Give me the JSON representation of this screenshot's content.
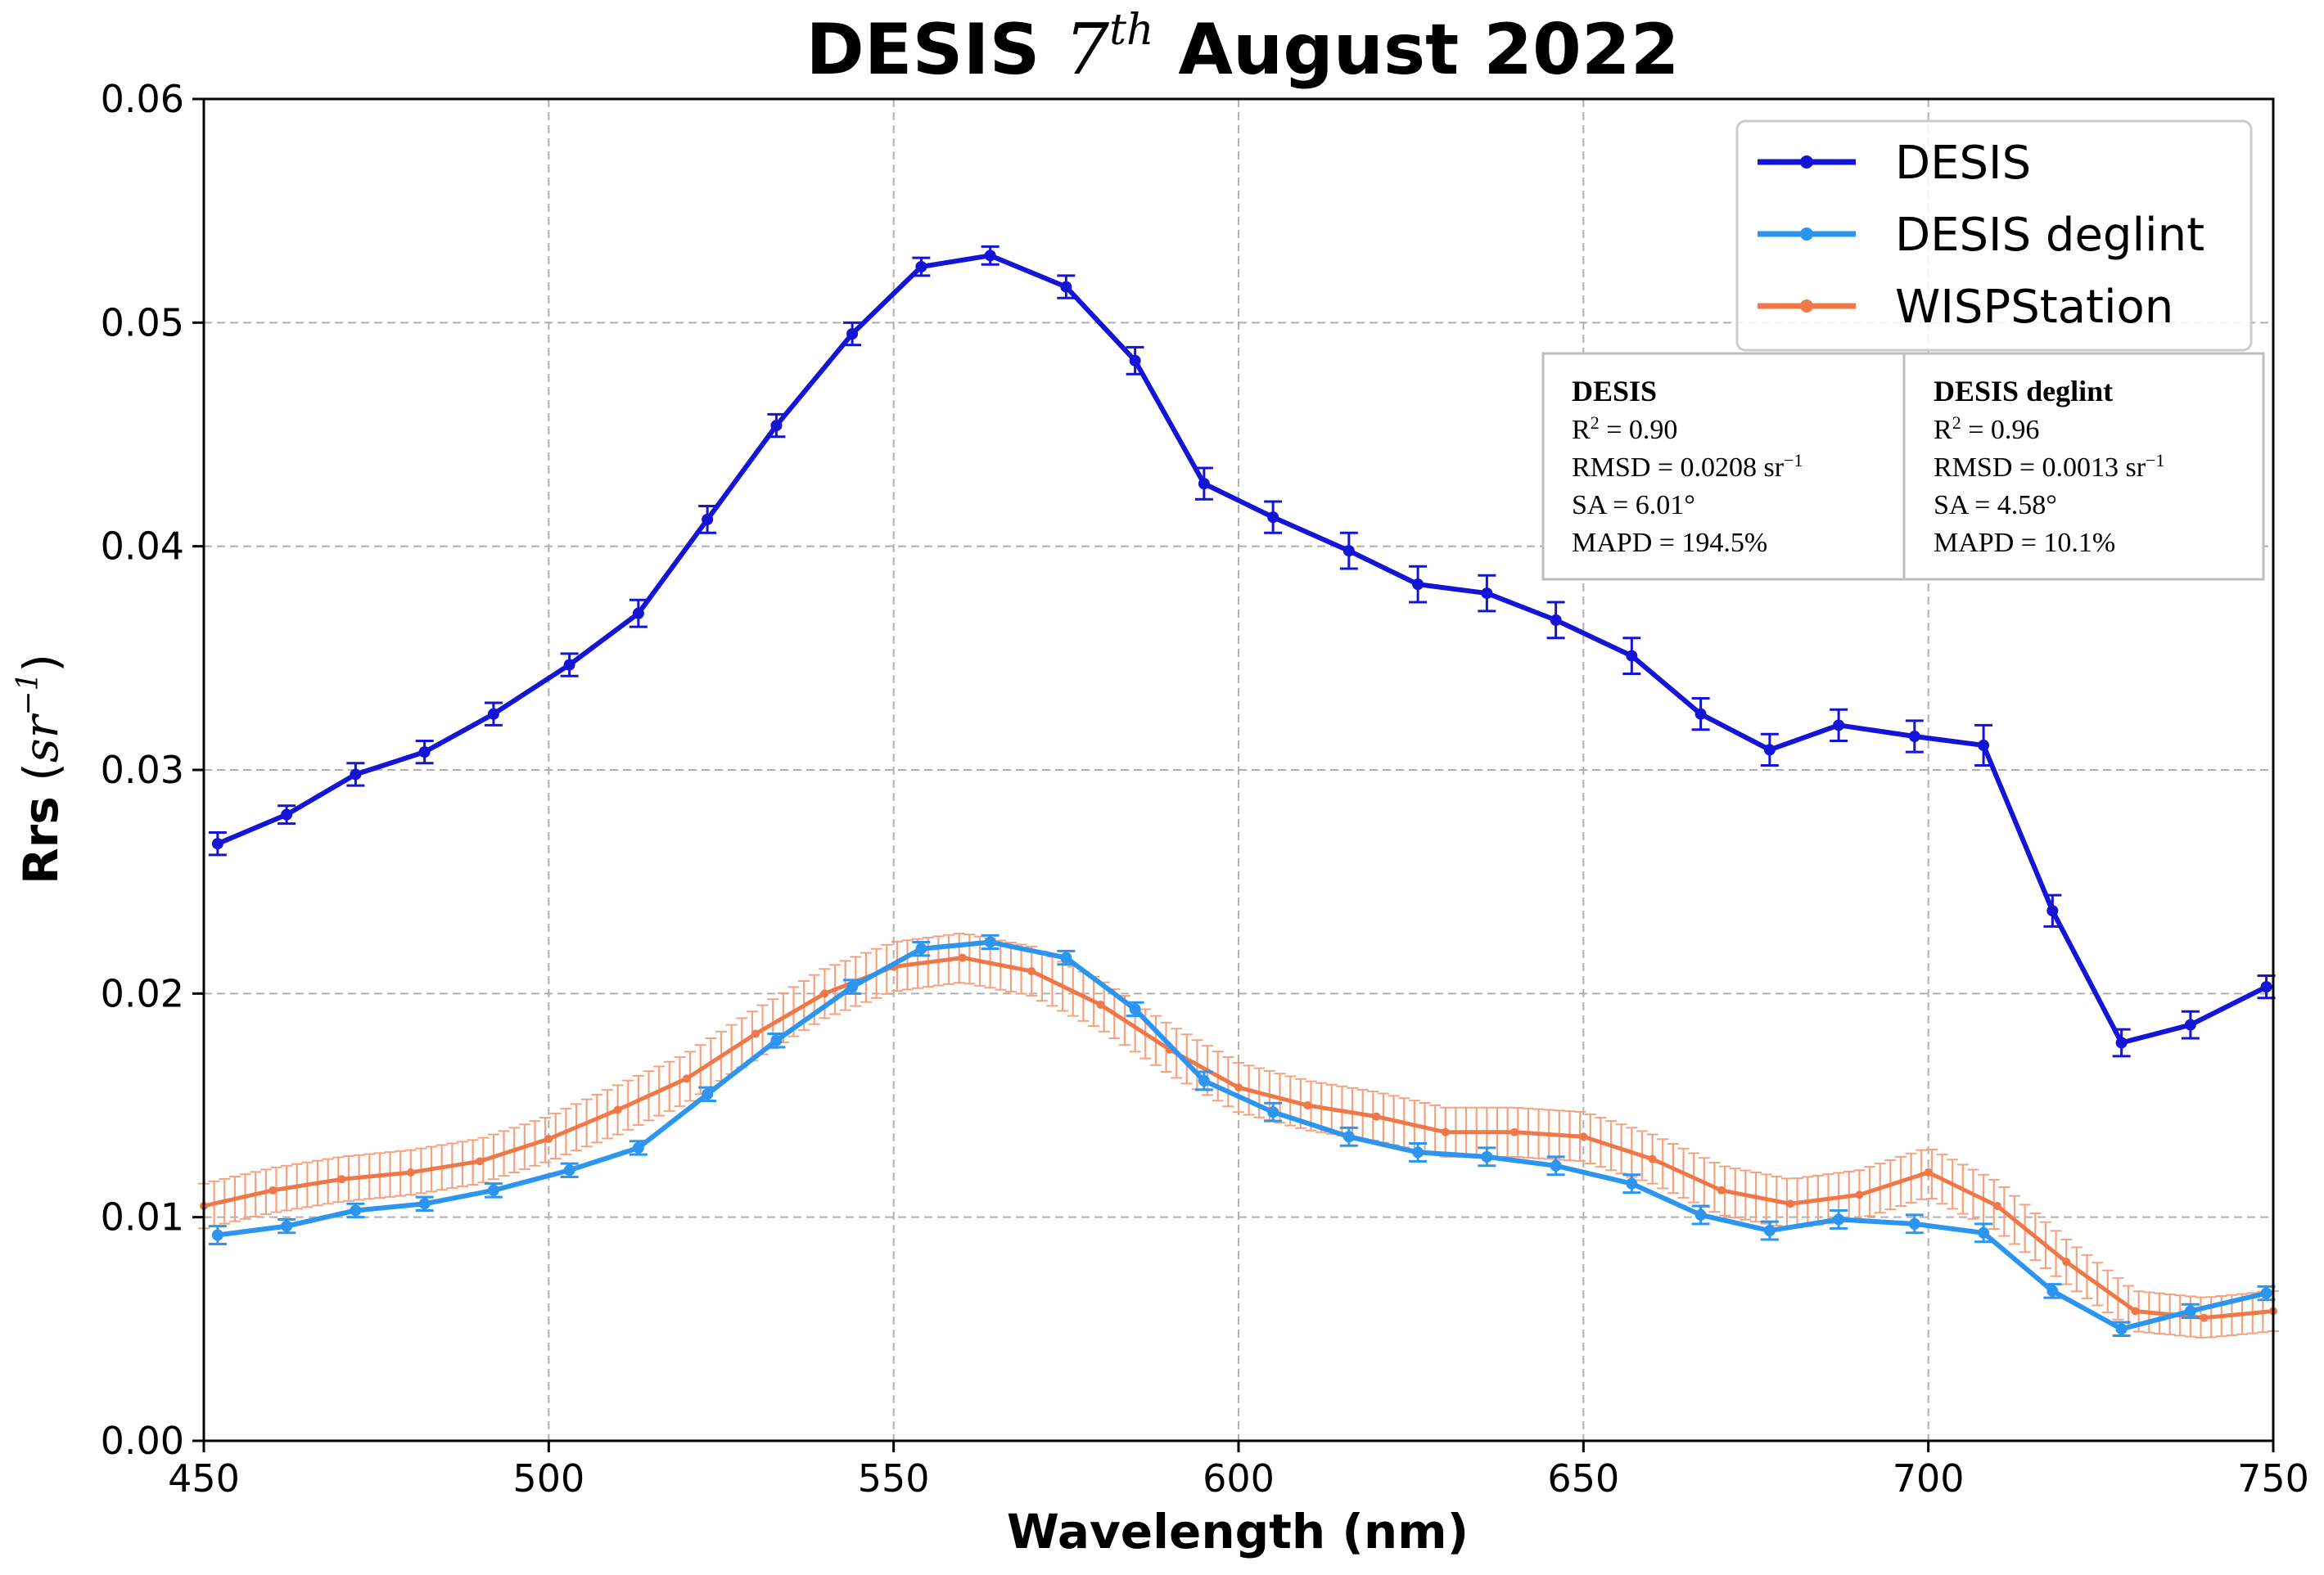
{
  "colors": {
    "desis": "#1414d6",
    "desis_deglint": "#2c95f0",
    "wisp": "#f07848",
    "wisp_errorbar": "#f5a27e",
    "grid": "#b0b0b0"
  },
  "stats": {
    "desis": {
      "title": "DESIS",
      "r2_base": "R",
      "r2_sup": "2",
      "r2_val": " = 0.90",
      "rmsd_text": "RMSD = 0.0208 sr",
      "rmsd_sup": "−1",
      "sa": "SA = 6.01°",
      "mapd": "MAPD = 194.5%"
    },
    "deglint": {
      "title": "DESIS deglint",
      "r2_base": "R",
      "r2_sup": "2",
      "r2_val": " = 0.96",
      "rmsd_text": "RMSD = 0.0013 sr",
      "rmsd_sup": "−1",
      "sa": "SA = 4.58°",
      "mapd": "MAPD = 10.1%"
    }
  },
  "chart_data": {
    "type": "line",
    "title": "DESIS 7th August 2022",
    "title_parts": {
      "pre": "DESIS ",
      "num": "7",
      "sup": "th",
      "post": " August 2022"
    },
    "xlabel": "Wavelength (nm)",
    "ylabel": "Rrs",
    "ylabel_unit": "sr",
    "ylabel_unit_exp": "−1",
    "xlim": [
      450,
      750
    ],
    "ylim": [
      0.0,
      0.06
    ],
    "xticks": [
      450,
      500,
      550,
      600,
      650,
      700,
      750
    ],
    "yticks": [
      0.0,
      0.01,
      0.02,
      0.03,
      0.04,
      0.05,
      0.06
    ],
    "ytick_labels": [
      "0.00",
      "0.01",
      "0.02",
      "0.03",
      "0.04",
      "0.05",
      "0.06"
    ],
    "grid": true,
    "legend_position": "top-right",
    "series": [
      {
        "name": "DESIS",
        "color": "#1414d6",
        "x": [
          452,
          462,
          472,
          482,
          492,
          503,
          513,
          523,
          533,
          544,
          554,
          564,
          575,
          585,
          595,
          605,
          616,
          626,
          636,
          646,
          657,
          667,
          677,
          687,
          698,
          708,
          718,
          728,
          738,
          749
        ],
        "y": [
          0.0267,
          0.028,
          0.0298,
          0.0308,
          0.0325,
          0.0347,
          0.037,
          0.0412,
          0.0454,
          0.0495,
          0.0525,
          0.053,
          0.0516,
          0.0483,
          0.0428,
          0.0413,
          0.0398,
          0.0383,
          0.0379,
          0.0367,
          0.0351,
          0.0325,
          0.0309,
          0.032,
          0.0315,
          0.0311,
          0.0237,
          0.0178,
          0.0186,
          0.0203
        ],
        "err": [
          0.0005,
          0.0004,
          0.0005,
          0.0005,
          0.0005,
          0.0005,
          0.0006,
          0.0006,
          0.0005,
          0.0005,
          0.0004,
          0.0004,
          0.0005,
          0.0006,
          0.0007,
          0.0007,
          0.0008,
          0.0008,
          0.0008,
          0.0008,
          0.0008,
          0.0007,
          0.0007,
          0.0007,
          0.0007,
          0.0009,
          0.0007,
          0.0006,
          0.0006,
          0.0005
        ]
      },
      {
        "name": "DESIS deglint",
        "color": "#2c95f0",
        "x": [
          452,
          462,
          472,
          482,
          492,
          503,
          513,
          523,
          533,
          544,
          554,
          564,
          575,
          585,
          595,
          605,
          616,
          626,
          636,
          646,
          657,
          667,
          677,
          687,
          698,
          708,
          718,
          728,
          738,
          749
        ],
        "y": [
          0.0092,
          0.0096,
          0.0103,
          0.0106,
          0.0112,
          0.0121,
          0.0131,
          0.0155,
          0.0179,
          0.0203,
          0.022,
          0.0223,
          0.0216,
          0.0193,
          0.0161,
          0.0147,
          0.0136,
          0.0129,
          0.0127,
          0.0123,
          0.0115,
          0.0101,
          0.0094,
          0.0099,
          0.0097,
          0.0093,
          0.0067,
          0.005,
          0.0058,
          0.0066
        ],
        "err": [
          0.0004,
          0.0003,
          0.0003,
          0.0003,
          0.0003,
          0.0003,
          0.0003,
          0.0003,
          0.0003,
          0.0003,
          0.0003,
          0.0003,
          0.0003,
          0.0003,
          0.0004,
          0.0004,
          0.0004,
          0.0004,
          0.0004,
          0.0004,
          0.0004,
          0.0004,
          0.0004,
          0.0004,
          0.0004,
          0.0004,
          0.0003,
          0.0003,
          0.0003,
          0.0003
        ]
      },
      {
        "name": "WISPStation",
        "color": "#f07848",
        "x": [
          450,
          460,
          470,
          480,
          490,
          500,
          510,
          520,
          530,
          540,
          550,
          560,
          570,
          580,
          590,
          600,
          610,
          620,
          630,
          640,
          650,
          660,
          670,
          680,
          690,
          700,
          710,
          720,
          730,
          740,
          750
        ],
        "y": [
          0.0105,
          0.0112,
          0.0117,
          0.012,
          0.0125,
          0.0135,
          0.0148,
          0.0162,
          0.0182,
          0.02,
          0.0212,
          0.0216,
          0.021,
          0.0195,
          0.0175,
          0.0158,
          0.015,
          0.0145,
          0.0138,
          0.0138,
          0.0136,
          0.0126,
          0.0112,
          0.0106,
          0.011,
          0.012,
          0.0105,
          0.008,
          0.0058,
          0.0055,
          0.0058
        ],
        "err": [
          0.001,
          0.001,
          0.001,
          0.001,
          0.001,
          0.001,
          0.0011,
          0.0011,
          0.0011,
          0.0011,
          0.0011,
          0.0011,
          0.0011,
          0.0011,
          0.0011,
          0.0011,
          0.0011,
          0.0011,
          0.0011,
          0.0011,
          0.0011,
          0.0011,
          0.0011,
          0.0011,
          0.0011,
          0.0011,
          0.0011,
          0.001,
          0.0009,
          0.0009,
          0.0009
        ]
      }
    ]
  }
}
